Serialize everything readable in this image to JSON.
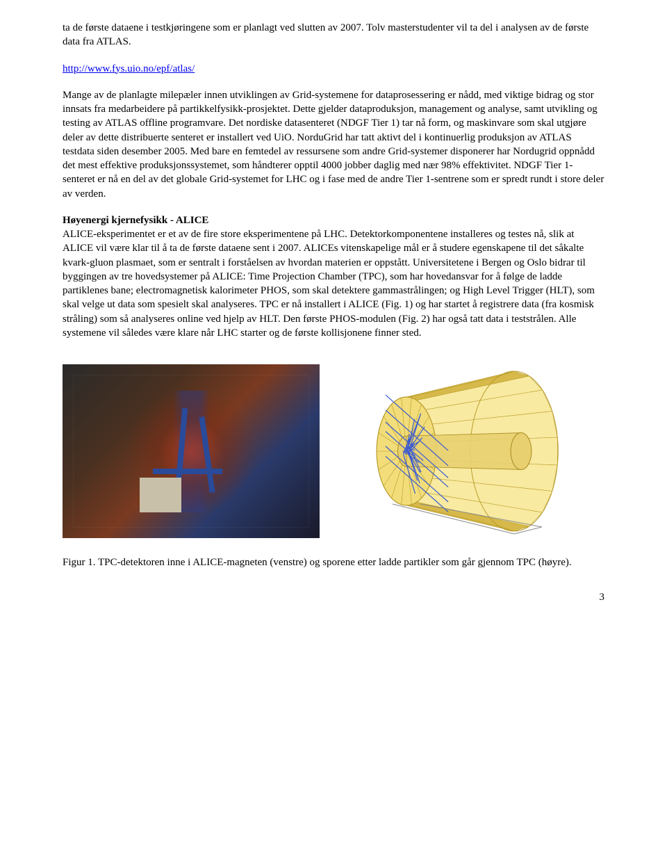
{
  "paragraph1": "ta de første dataene i testkjøringene som er planlagt ved slutten av 2007. Tolv masterstudenter vil ta del i analysen av de første data fra ATLAS.",
  "link": {
    "text": "http://www.fys.uio.no/epf/atlas/",
    "href": "http://www.fys.uio.no/epf/atlas/"
  },
  "paragraph2": "Mange av de planlagte milepæler innen utviklingen av Grid-systemene for dataprosessering er nådd, med viktige bidrag og stor innsats fra medarbeidere på partikkelfysikk-prosjektet. Dette gjelder dataproduksjon, management og analyse, samt utvikling og testing av ATLAS offline programvare. Det nordiske datasenteret (NDGF Tier 1) tar nå form, og maskinvare som skal utgjøre deler av dette distribuerte senteret er installert ved UiO. NorduGrid har tatt aktivt del i kontinuerlig produksjon av ATLAS testdata siden desember 2005. Med bare en femtedel av ressursene som andre Grid-systemer disponerer har Nordugrid oppnådd det mest effektive produksjonssystemet, som håndterer opptil 4000 jobber daglig med nær 98% effektivitet. NDGF Tier 1-senteret er nå en del av det globale Grid-systemet for LHC og i fase med de andre Tier 1-sentrene som er spredt rundt i store deler av verden.",
  "section": {
    "heading": "Høyenergi kjernefysikk - ALICE",
    "body": "ALICE-eksperimentet er et av de fire store eksperimentene på LHC. Detektorkomponentene installeres og testes nå, slik at ALICE vil være klar til å ta de første dataene sent i 2007. ALICEs vitenskapelige mål er å studere egenskapene til det såkalte kvark-gluon plasmaet, som er sentralt i forståelsen av hvordan materien er oppstått. Universitetene i Bergen og Oslo bidrar til byggingen av tre hovedsystemer på ALICE: Time Projection Chamber (TPC), som har hovedansvar for å følge de ladde partiklenes bane; electromagnetisk kalorimeter PHOS, som skal detektere gammastrålingen; og High Level Trigger (HLT), som skal velge ut data som spesielt skal analyseres. TPC er nå installert i ALICE (Fig. 1) og har startet å registrere data (fra kosmisk stråling) som så analyseres online ved hjelp av HLT. Den første PHOS-modulen (Fig. 2) har også tatt data i teststrålen. Alle systemene vil således være klare når LHC starter og de første kollisjonene finner sted."
  },
  "figure": {
    "caption": "Figur 1. TPC-detektoren inne i ALICE-magneten (venstre) og sporene etter ladde partikler som går gjennom TPC (høyre).",
    "left_alt": "TPC detector photo inside ALICE magnet",
    "right_alt": "TPC cylinder schematic with particle tracks",
    "tpc_schematic": {
      "face_fill": "#f2dd7a",
      "face_stroke": "#b89b2a",
      "body_fill_light": "#f8eaa0",
      "body_fill_dark": "#d6b94a",
      "inner_tube_fill": "#e8d070",
      "inner_tube_stroke": "#a88a20",
      "track_color": "#3a5ad0",
      "track_width": 1.2
    }
  },
  "page_number": "3"
}
